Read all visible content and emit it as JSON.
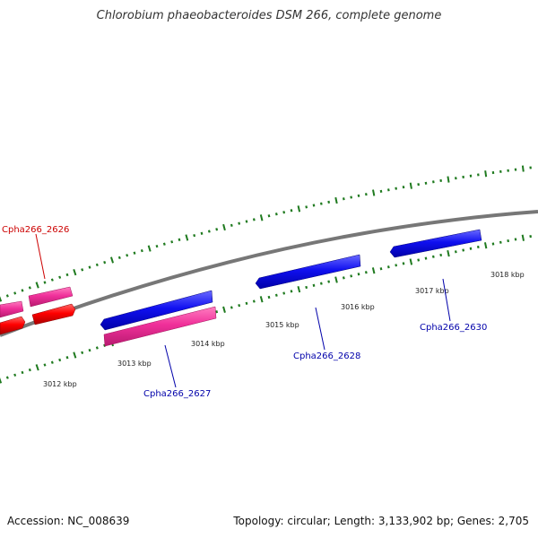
{
  "title": "Chlorobium phaeobacteroides DSM 266, complete genome",
  "footer": {
    "accession": "Accession: NC_008639",
    "summary": "Topology: circular; Length: 3,133,902 bp; Genes: 2,705"
  },
  "colors": {
    "backbone": "#888888",
    "ticks": "#1f7a1f",
    "forward_gene": "#0000ee",
    "reverse_gene": "#ee2f8f",
    "highlight_gene": "#ff0000",
    "label_red": "#cc0000",
    "label_blue": "#0000aa"
  },
  "kbp_labels": [
    "3012 kbp",
    "3013 kbp",
    "3014 kbp",
    "3015 kbp",
    "3016 kbp",
    "3017 kbp",
    "3018 kbp"
  ],
  "gene_labels": {
    "g2626": "Cpha266_2626",
    "g2627": "Cpha266_2627",
    "g2628": "Cpha266_2628",
    "g2630": "Cpha266_2630"
  }
}
